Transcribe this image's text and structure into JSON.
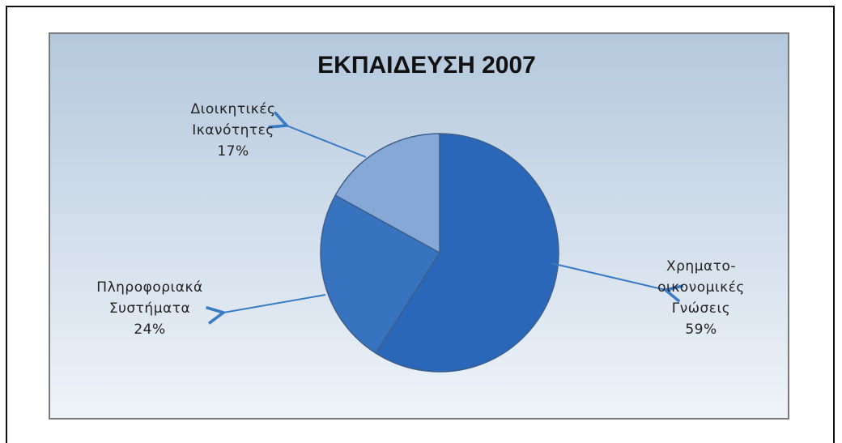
{
  "chart_data": {
    "type": "pie",
    "title": "ΕΚΠΑΙΔΕΥΣΗ 2007",
    "categories": [
      "Χρηματο-\nοικονομικές\nΓνώσεις",
      "Πληροφοριακά\nΣυστήματα",
      "Διοικητικές\nΙκανότητες"
    ],
    "values": [
      59,
      24,
      17
    ],
    "value_labels": [
      "59%",
      "24%",
      "17%"
    ],
    "colors": [
      "#2a67b8",
      "#3873c0",
      "#86a8d6"
    ]
  }
}
